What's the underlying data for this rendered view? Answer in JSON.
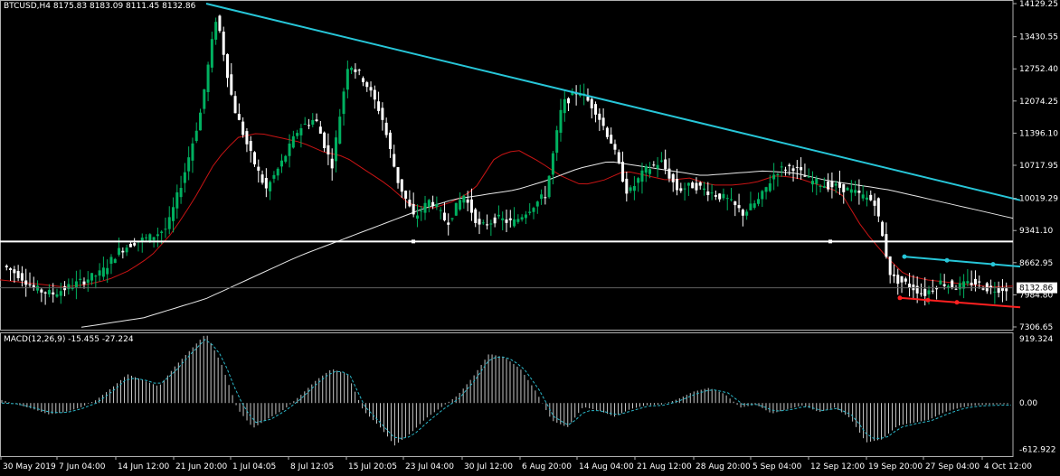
{
  "header": {
    "symbol": "BTCUSD,H4",
    "ohlc": "8175.83 8183.09 8111.45 8132.86"
  },
  "macd_header": "MACD(12,26,9) -15.455 -27.224",
  "current_price_label": "8132.86",
  "colors": {
    "background": "#000000",
    "candle_up": "#00b060",
    "candle_down": "#ffffff",
    "ma_fast": "#c81414",
    "ma_slow": "#e8e8e8",
    "trendline": "#27c6d8",
    "support_line": "#ff2020",
    "horizontal_line": "#ffffff",
    "macd_hist": "#c8c8c8",
    "macd_signal": "#2bb6c8"
  },
  "chart_data": [
    {
      "type": "candlestick",
      "title": "BTCUSD,H4",
      "y_ticks": [
        "14129.25",
        "13430.55",
        "12752.40",
        "12074.25",
        "11396.10",
        "10717.95",
        "10019.29",
        "9341.10",
        "8662.95",
        "7984.80",
        "7306.65"
      ],
      "ylim": [
        7230,
        14129.25
      ],
      "x_ticks": [
        "30 May 2019",
        "7 Jun 04:00",
        "14 Jun 12:00",
        "21 Jun 20:00",
        "1 Jul 04:05",
        "8 Jul 12:05",
        "15 Jul 20:05",
        "23 Jul 04:00",
        "30 Jul 12:00",
        "6 Aug 20:00",
        "14 Aug 04:00",
        "21 Aug 12:00",
        "28 Aug 20:00",
        "5 Sep 04:00",
        "12 Sep 12:00",
        "19 Sep 20:00",
        "27 Sep 04:00",
        "4 Oct 12:00"
      ],
      "close_path": [
        8600,
        8400,
        8100,
        8000,
        8150,
        8300,
        8450,
        8900,
        9100,
        9200,
        9400,
        10500,
        11800,
        13900,
        12000,
        11000,
        10200,
        10800,
        11500,
        11700,
        10700,
        12900,
        12500,
        11800,
        10400,
        9600,
        10000,
        9500,
        10100,
        9400,
        9600,
        9500,
        9800,
        10100,
        12000,
        12300,
        11900,
        11200,
        10100,
        10600,
        10800,
        10200,
        10300,
        10150,
        10000,
        9700,
        10000,
        10600,
        10700,
        10400,
        10300,
        10250,
        10100,
        9950,
        8350,
        8200,
        8000,
        8250,
        8150,
        8250,
        8100,
        8132.86
      ],
      "ma_fast": [
        8300,
        8250,
        8200,
        8150,
        8200,
        8300,
        8500,
        8800,
        9300,
        10000,
        10800,
        11300,
        11400,
        11300,
        11200,
        11000,
        10900,
        10600,
        10300,
        9900,
        9800,
        9950,
        10200,
        10900,
        11050,
        10800,
        10500,
        10300,
        10400,
        10600,
        10500,
        10400,
        10450,
        10300,
        10300,
        10350,
        10500,
        10450,
        10300,
        10150,
        9400,
        8850,
        8400,
        8300,
        8250,
        8200,
        8150,
        8170
      ],
      "ma_slow": [
        7300,
        7400,
        7500,
        7700,
        7900,
        8200,
        8500,
        8800,
        9050,
        9300,
        9550,
        9800,
        10000,
        10100,
        10200,
        10400,
        10650,
        10800,
        10700,
        10600,
        10500,
        10550,
        10600,
        10550,
        10400,
        10300,
        10200,
        10050,
        9900,
        9750,
        9600
      ],
      "trendline_upper": [
        [
          0,
          14129
        ],
        [
          1,
          9980
        ]
      ],
      "horizontal_level": 9110,
      "channel_top": [
        8790,
        8580
      ],
      "channel_bottom": [
        7920,
        7720
      ],
      "last_price": 8132.86
    },
    {
      "type": "bar",
      "title": "MACD(12,26,9)",
      "values_label": [
        "-15.455",
        "-27.224"
      ],
      "y_ticks": [
        "919.324",
        "0.00",
        "-612.922"
      ],
      "ylim": [
        -700,
        919.324
      ],
      "hist_path": [
        40,
        -20,
        -80,
        -150,
        -120,
        -60,
        40,
        200,
        380,
        300,
        220,
        480,
        700,
        919,
        500,
        -80,
        -330,
        -200,
        -80,
        100,
        300,
        450,
        380,
        -100,
        -300,
        -560,
        -400,
        -200,
        -50,
        100,
        350,
        650,
        600,
        450,
        150,
        -230,
        -320,
        -50,
        -100,
        -180,
        -80,
        -30,
        -20,
        50,
        150,
        200,
        120,
        -60,
        -20,
        -140,
        -80,
        -30,
        -120,
        -60,
        -200,
        -520,
        -480,
        -300,
        -260,
        -220,
        -120,
        -60,
        -30,
        -20,
        -15.455
      ],
      "signal_path": [
        0,
        -10,
        -60,
        -120,
        -130,
        -80,
        0,
        150,
        330,
        310,
        240,
        420,
        650,
        860,
        600,
        80,
        -260,
        -220,
        -100,
        60,
        260,
        420,
        400,
        -40,
        -260,
        -480,
        -440,
        -250,
        -80,
        60,
        300,
        600,
        610,
        480,
        200,
        -180,
        -300,
        -100,
        -100,
        -160,
        -100,
        -40,
        -30,
        30,
        120,
        180,
        140,
        -20,
        -20,
        -110,
        -90,
        -40,
        -100,
        -70,
        -170,
        -460,
        -470,
        -320,
        -270,
        -230,
        -140,
        -70,
        -40,
        -30,
        -27.224
      ]
    }
  ]
}
